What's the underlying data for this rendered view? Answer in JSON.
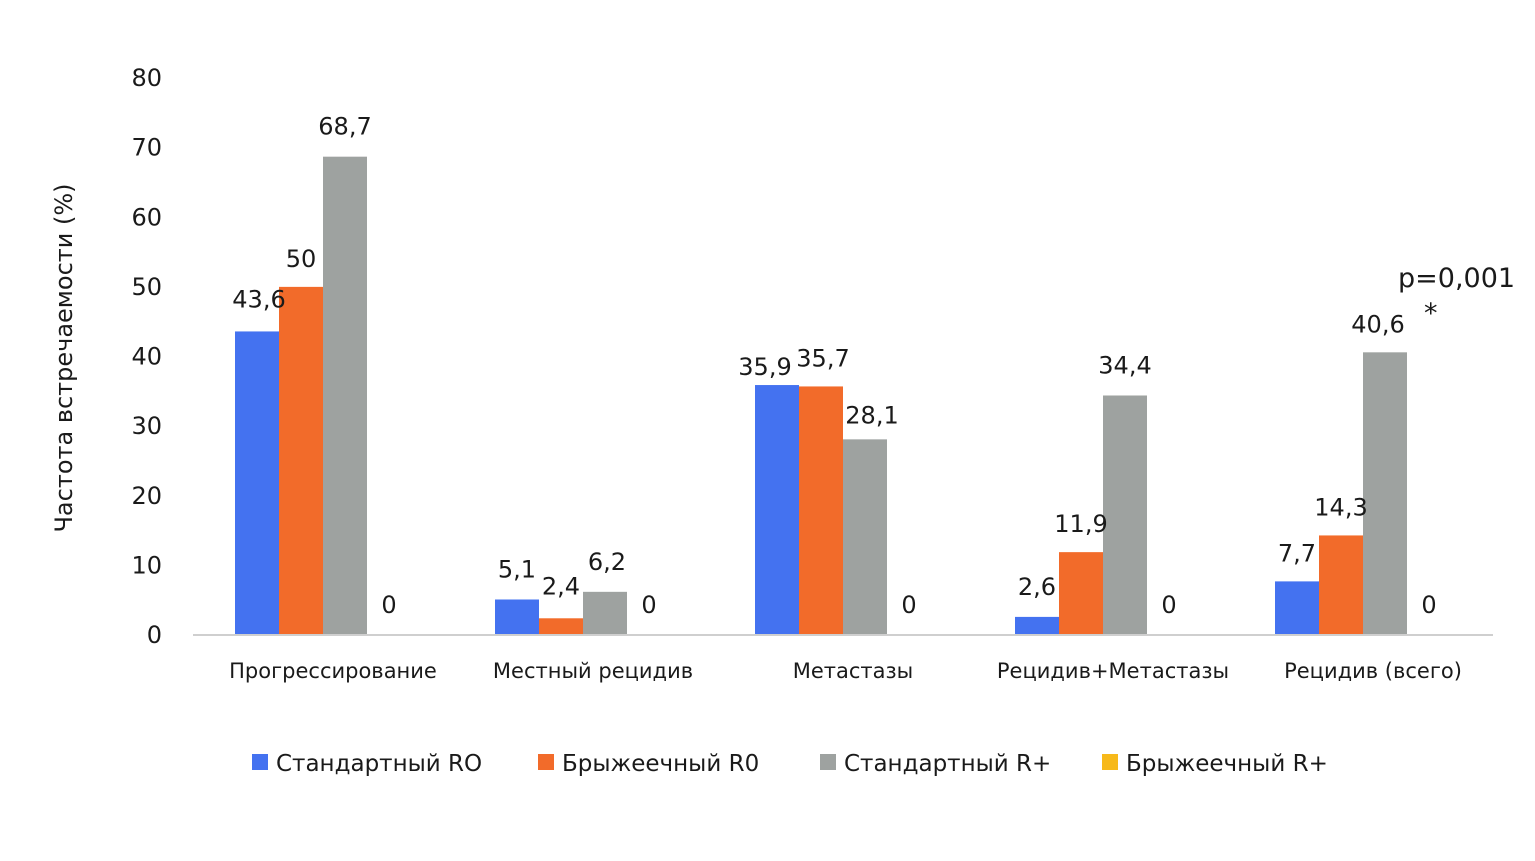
{
  "chart_data": {
    "type": "bar",
    "title": "",
    "xlabel": "",
    "ylabel": "Частота встречаемости (%)",
    "ylim": [
      0,
      80
    ],
    "yticks": [
      0,
      10,
      20,
      30,
      40,
      50,
      60,
      70,
      80
    ],
    "grid": false,
    "legend_position": "bottom",
    "categories": [
      "Прогрессирование",
      "Местный рецидив",
      "Метастазы",
      "Рецидив+Метастазы",
      "Рецидив (всего)"
    ],
    "series": [
      {
        "name": "Стандартный RO",
        "color": "#4472f0",
        "values": [
          43.6,
          5.1,
          35.9,
          2.6,
          7.7
        ],
        "labels": [
          "43,6",
          "5,1",
          "35,9",
          "2,6",
          "7,7"
        ]
      },
      {
        "name": "Брыжеечный R0",
        "color": "#f26b2a",
        "values": [
          50,
          2.4,
          35.7,
          11.9,
          14.3
        ],
        "labels": [
          "50",
          "2,4",
          "35,7",
          "11,9",
          "14,3"
        ]
      },
      {
        "name": "Стандартный R+",
        "color": "#9ea2a0",
        "values": [
          68.7,
          6.2,
          28.1,
          34.4,
          40.6
        ],
        "labels": [
          "68,7",
          "6,2",
          "28,1",
          "34,4",
          "40,6"
        ]
      },
      {
        "name": "Брыжеечный R+",
        "color": "#f7b91a",
        "values": [
          0,
          0,
          0,
          0,
          0
        ],
        "labels": [
          "0",
          "0",
          "0",
          "0",
          "0"
        ]
      }
    ],
    "annotations": {
      "p_value": "p=0,001",
      "significance_mark": "*"
    }
  }
}
